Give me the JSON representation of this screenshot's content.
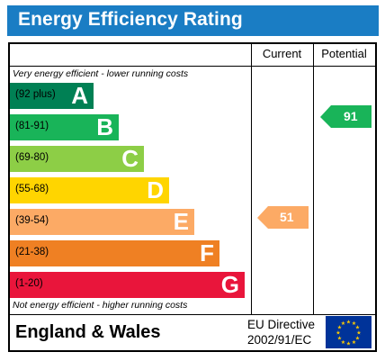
{
  "title": "Energy Efficiency Rating",
  "columns": {
    "current": "Current",
    "potential": "Potential"
  },
  "caption_top": "Very energy efficient - lower running costs",
  "caption_bottom": "Not energy efficient - higher running costs",
  "bands": [
    {
      "range": "(92 plus)",
      "letter": "A",
      "color": "#008054"
    },
    {
      "range": "(81-91)",
      "letter": "B",
      "color": "#19b459"
    },
    {
      "range": "(69-80)",
      "letter": "C",
      "color": "#8dce46"
    },
    {
      "range": "(55-68)",
      "letter": "D",
      "color": "#ffd500"
    },
    {
      "range": "(39-54)",
      "letter": "E",
      "color": "#fcaa65"
    },
    {
      "range": "(21-38)",
      "letter": "F",
      "color": "#ef8023"
    },
    {
      "range": "(1-20)",
      "letter": "G",
      "color": "#e9153b"
    }
  ],
  "current": {
    "value": "51",
    "band": "E",
    "color": "#fcaa65"
  },
  "potential": {
    "value": "91",
    "band": "B",
    "color": "#19b459"
  },
  "footer": {
    "region": "England & Wales",
    "directive_line1": "EU Directive",
    "directive_line2": "2002/91/EC"
  }
}
